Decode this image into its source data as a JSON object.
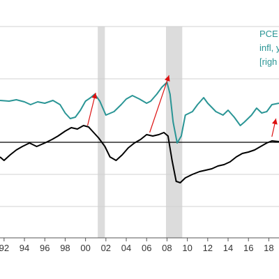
{
  "chart_data": {
    "type": "line",
    "title": "",
    "xlabel": "",
    "ylabel": "",
    "x_range": [
      1991.6,
      2019.0
    ],
    "x_ticks": [
      "92",
      "94",
      "96",
      "98",
      "00",
      "02",
      "04",
      "06",
      "08",
      "10",
      "12",
      "14",
      "16",
      "18"
    ],
    "x_tick_values": [
      1992,
      1994,
      1996,
      1998,
      2000,
      2002,
      2004,
      2006,
      2008,
      2010,
      2012,
      2014,
      2016,
      2018
    ],
    "grid": "horizontal",
    "legend_placement": "top-right",
    "legend_lines": [
      "PCE",
      "infl, y",
      "[righ"
    ],
    "recessions": [
      [
        2001.2,
        2001.9
      ],
      [
        2007.9,
        2009.5
      ]
    ],
    "series": [
      {
        "color": "#2a9595",
        "points": [
          [
            1991.6,
            144
          ],
          [
            1992.5,
            145
          ],
          [
            1993.2,
            143
          ],
          [
            1994.0,
            146
          ],
          [
            1994.6,
            150
          ],
          [
            1995.3,
            146
          ],
          [
            1996.0,
            148
          ],
          [
            1996.8,
            144
          ],
          [
            1997.5,
            150
          ],
          [
            1998.0,
            162
          ],
          [
            1998.5,
            170
          ],
          [
            1999.0,
            168
          ],
          [
            1999.5,
            158
          ],
          [
            2000.0,
            145
          ],
          [
            2000.5,
            140
          ],
          [
            2000.9,
            135
          ],
          [
            2001.4,
            145
          ],
          [
            2002.0,
            165
          ],
          [
            2002.8,
            160
          ],
          [
            2003.5,
            150
          ],
          [
            2004.0,
            142
          ],
          [
            2004.6,
            137
          ],
          [
            2005.3,
            142
          ],
          [
            2006.0,
            148
          ],
          [
            2006.4,
            145
          ],
          [
            2007.0,
            135
          ],
          [
            2007.5,
            125
          ],
          [
            2008.0,
            118
          ],
          [
            2008.3,
            135
          ],
          [
            2008.6,
            175
          ],
          [
            2009.0,
            205
          ],
          [
            2009.4,
            195
          ],
          [
            2009.8,
            165
          ],
          [
            2010.5,
            160
          ],
          [
            2011.0,
            150
          ],
          [
            2011.6,
            140
          ],
          [
            2012.0,
            148
          ],
          [
            2012.8,
            160
          ],
          [
            2013.5,
            165
          ],
          [
            2014.0,
            158
          ],
          [
            2014.6,
            168
          ],
          [
            2015.2,
            180
          ],
          [
            2015.6,
            175
          ],
          [
            2016.3,
            165
          ],
          [
            2016.8,
            155
          ],
          [
            2017.3,
            162
          ],
          [
            2017.8,
            160
          ],
          [
            2018.3,
            150
          ],
          [
            2019.0,
            148
          ]
        ]
      },
      {
        "color": "#000000",
        "points": [
          [
            1991.6,
            225
          ],
          [
            1992.0,
            230
          ],
          [
            1992.6,
            222
          ],
          [
            1993.2,
            215
          ],
          [
            1993.8,
            210
          ],
          [
            1994.5,
            205
          ],
          [
            1995.2,
            210
          ],
          [
            1996.0,
            205
          ],
          [
            1996.7,
            200
          ],
          [
            1997.3,
            195
          ],
          [
            1998.0,
            188
          ],
          [
            1998.6,
            183
          ],
          [
            1999.2,
            185
          ],
          [
            1999.8,
            180
          ],
          [
            2000.3,
            182
          ],
          [
            2000.8,
            190
          ],
          [
            2001.3,
            198
          ],
          [
            2001.9,
            210
          ],
          [
            2002.4,
            225
          ],
          [
            2003.0,
            230
          ],
          [
            2003.6,
            222
          ],
          [
            2004.2,
            212
          ],
          [
            2004.8,
            205
          ],
          [
            2005.4,
            200
          ],
          [
            2006.0,
            193
          ],
          [
            2006.6,
            195
          ],
          [
            2007.2,
            193
          ],
          [
            2007.7,
            190
          ],
          [
            2008.1,
            195
          ],
          [
            2008.5,
            230
          ],
          [
            2008.9,
            260
          ],
          [
            2009.3,
            262
          ],
          [
            2009.8,
            255
          ],
          [
            2010.5,
            250
          ],
          [
            2011.2,
            246
          ],
          [
            2011.8,
            244
          ],
          [
            2012.4,
            242
          ],
          [
            2013.0,
            238
          ],
          [
            2013.6,
            236
          ],
          [
            2014.2,
            232
          ],
          [
            2014.8,
            225
          ],
          [
            2015.4,
            220
          ],
          [
            2016.0,
            218
          ],
          [
            2016.6,
            215
          ],
          [
            2017.2,
            210
          ],
          [
            2017.8,
            205
          ],
          [
            2018.3,
            202
          ],
          [
            2019.0,
            203
          ]
        ]
      }
    ],
    "annotations": [
      {
        "type": "arrow",
        "color": "#dd1111",
        "from": [
          2000.2,
          180
        ],
        "to": [
          2001.0,
          133
        ]
      },
      {
        "type": "arrow",
        "color": "#dd1111",
        "from": [
          2006.3,
          190
        ],
        "to": [
          2008.2,
          108
        ]
      },
      {
        "type": "arrow",
        "color": "#dd1111",
        "from": [
          2018.3,
          196
        ],
        "to": [
          2018.7,
          170
        ]
      }
    ]
  },
  "colors": {
    "recession_band": "#dcdcdc",
    "gridline": "#d0d0d0",
    "zero_line": "#000000",
    "legend_text": "#2a9595",
    "annotation": "#dd1111"
  }
}
